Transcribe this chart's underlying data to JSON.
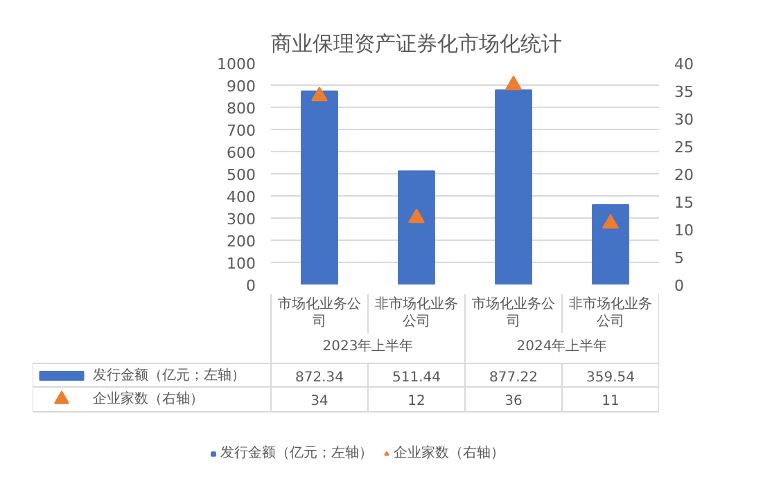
{
  "chart_data": {
    "type": "bar",
    "title": "商业保理资产证券化市场化统计",
    "categories": [
      "市场化业务公司",
      "非市场化业务公司",
      "市场化业务公司",
      "非市场化业务公司"
    ],
    "annotations": [
      "2023年上半年",
      "2024年上半年"
    ],
    "series": [
      {
        "name": "发行金额（亿元；左轴）",
        "color": "#4472c4",
        "values": [
          872.34,
          511.44,
          877.22,
          359.54
        ]
      },
      {
        "name": "企业家数（右轴）",
        "type": "scatter",
        "axis": "y2",
        "marker": "triangle",
        "color": "#ed7d31",
        "values": [
          34,
          12,
          36,
          11
        ]
      }
    ],
    "ylim": [
      0,
      1000
    ],
    "yticks": [
      0,
      100,
      200,
      300,
      400,
      500,
      600,
      700,
      800,
      900,
      1000
    ],
    "y2lim": [
      0,
      40
    ],
    "y2ticks": [
      0,
      5,
      10,
      15,
      20,
      25,
      30,
      35,
      40
    ],
    "grid": "y",
    "legend": "bottom",
    "data_labels": true
  }
}
